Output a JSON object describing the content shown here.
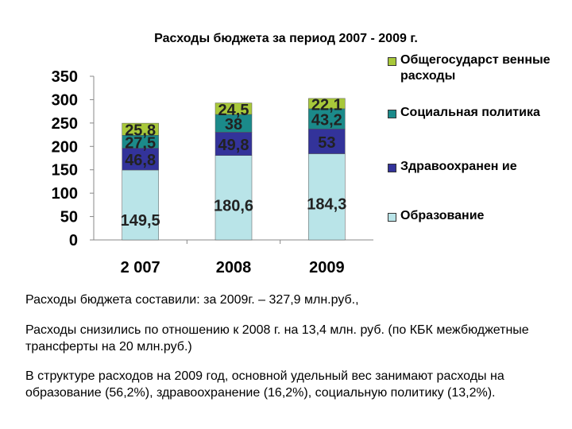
{
  "chart_data": {
    "type": "bar",
    "stacked": true,
    "title": "Расходы бюджета за период 2007 - 2009 г.",
    "categories": [
      "2 007",
      "2008",
      "2009"
    ],
    "ylim": [
      0,
      350
    ],
    "yticks": [
      "0",
      "50",
      "100",
      "150",
      "200",
      "250",
      "300",
      "350"
    ],
    "series": [
      {
        "name": "Образование",
        "color": "#b9e4e8",
        "values": [
          149.5,
          180.6,
          184.3
        ],
        "labels": [
          "149,5",
          "180,6",
          "184,3"
        ]
      },
      {
        "name": "Здравоохранение",
        "color": "#33339a",
        "values": [
          46.8,
          49.8,
          53
        ],
        "labels": [
          "46,8",
          "49,8",
          "53"
        ]
      },
      {
        "name": "Социальная политика",
        "color": "#1b8a8a",
        "values": [
          27.5,
          38,
          43.2
        ],
        "labels": [
          "27,5",
          "38",
          "43,2"
        ]
      },
      {
        "name": "Общегосударственные расходы",
        "color": "#a8c83a",
        "values": [
          25.8,
          24.5,
          22.1
        ],
        "labels": [
          "25,8",
          "24,5",
          "22,1"
        ]
      }
    ],
    "legend_position": "right"
  },
  "legend": [
    {
      "label": "Общегосударст венные расходы",
      "color": "#a8c83a"
    },
    {
      "label": "Социальная политика",
      "color": "#1b8a8a"
    },
    {
      "label": "Здравоохранен ие",
      "color": "#33339a"
    },
    {
      "label": "Образование",
      "color": "#b9e4e8"
    }
  ],
  "text": {
    "para1": "Расходы бюджета составили: за 2009г. – 327,9 млн.руб.,",
    "para2": "Расходы снизились по отношению к 2008 г. на 13,4 млн. руб. (по КБК межбюджетные трансферты на 20 млн.руб.)",
    "para3": "В структуре расходов на 2009 год, основной удельный вес занимают расходы на образование (56,2%), здравоохранение (16,2%), социальную политику (13,2%)."
  }
}
